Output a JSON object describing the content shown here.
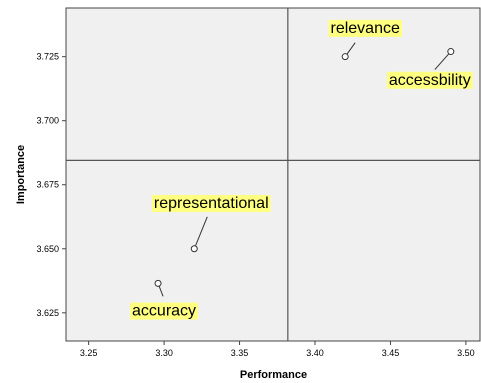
{
  "chart_data": {
    "type": "scatter",
    "xlabel": "Performance",
    "ylabel": "Importance",
    "xlim": [
      3.235,
      3.51
    ],
    "ylim": [
      3.614,
      3.744
    ],
    "xticks": [
      "3.25",
      "3.30",
      "3.35",
      "3.40",
      "3.45",
      "3.50"
    ],
    "yticks": [
      "3.625",
      "3.650",
      "3.675",
      "3.700",
      "3.725"
    ],
    "reference_lines": {
      "x": 3.382,
      "y": 3.6845
    },
    "grid": false,
    "points": [
      {
        "label": "relevance",
        "x": 3.42,
        "y": 3.725
      },
      {
        "label": "accessbility",
        "x": 3.49,
        "y": 3.727
      },
      {
        "label": "representational",
        "x": 3.32,
        "y": 3.65
      },
      {
        "label": "accuracy",
        "x": 3.296,
        "y": 3.6365
      }
    ]
  },
  "colors": {
    "plot_background": "#f0f0f0",
    "label_background": "#ffff80",
    "reference_line": "#555555"
  }
}
